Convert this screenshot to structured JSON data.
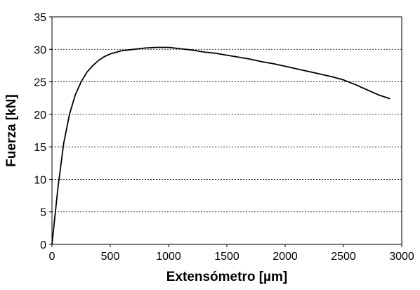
{
  "chart_data": {
    "type": "line",
    "title": "",
    "xlabel": "Extensómetro [µm]",
    "ylabel": "Fuerza [kN]",
    "xlim": [
      0,
      3000
    ],
    "ylim": [
      0,
      35
    ],
    "x_ticks": [
      "0",
      "500",
      "1000",
      "1500",
      "2000",
      "2500",
      "3000"
    ],
    "y_ticks": [
      "0",
      "5",
      "10",
      "15",
      "20",
      "25",
      "30",
      "35"
    ],
    "grid": "horizontal dashed",
    "legend": "none",
    "series": [
      {
        "color": "#000000",
        "x": [
          0,
          50,
          100,
          150,
          200,
          250,
          300,
          350,
          400,
          450,
          500,
          600,
          700,
          800,
          900,
          1000,
          1100,
          1200,
          1300,
          1400,
          1500,
          1600,
          1700,
          1800,
          1900,
          2000,
          2100,
          2200,
          2300,
          2400,
          2500,
          2600,
          2700,
          2800,
          2900
        ],
        "y": [
          0,
          8.5,
          15.5,
          20.0,
          23.0,
          25.0,
          26.5,
          27.5,
          28.3,
          28.9,
          29.3,
          29.8,
          30.0,
          30.2,
          30.3,
          30.3,
          30.1,
          29.9,
          29.6,
          29.4,
          29.1,
          28.8,
          28.5,
          28.1,
          27.8,
          27.4,
          27.0,
          26.6,
          26.2,
          25.8,
          25.3,
          24.6,
          23.8,
          23.0,
          22.4
        ]
      }
    ]
  }
}
